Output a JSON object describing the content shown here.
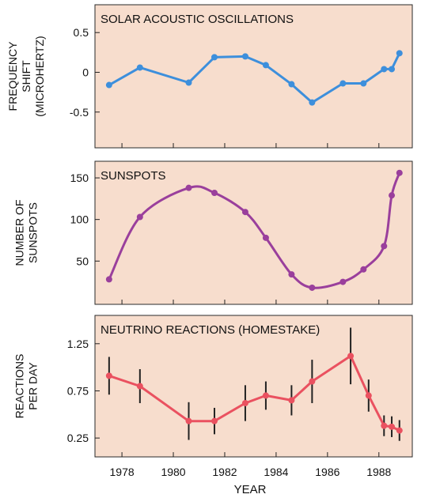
{
  "chart_data": [
    {
      "type": "line",
      "title": "SOLAR ACOUSTIC OSCILLATIONS",
      "ylabel_lines": [
        "FREQUENCY",
        "SHIFT",
        "(MICROHERTZ)"
      ],
      "ylim": [
        -0.95,
        0.85
      ],
      "yticks": [
        0.5,
        0,
        -0.5
      ],
      "ytick_labels": [
        "0.5",
        "0",
        "-0.5"
      ],
      "color": "#3d8fdc",
      "series": [
        {
          "x": [
            1977.5,
            1978.7,
            1980.6,
            1981.6,
            1982.8,
            1983.6,
            1984.6,
            1985.4,
            1986.6,
            1987.4,
            1988.2,
            1988.5,
            1988.8
          ],
          "y": [
            -0.16,
            0.06,
            -0.13,
            0.19,
            0.2,
            0.09,
            -0.15,
            -0.38,
            -0.14,
            -0.14,
            0.04,
            0.04,
            0.24
          ]
        }
      ]
    },
    {
      "type": "line",
      "title": "SUNSPOTS",
      "ylabel_lines": [
        "NUMBER OF",
        "SUNSPOTS"
      ],
      "ylim": [
        -2,
        170
      ],
      "yticks": [
        150,
        100,
        50
      ],
      "ytick_labels": [
        "150",
        "100",
        "50"
      ],
      "color": "#9a3f9c",
      "series": [
        {
          "x": [
            1977.5,
            1978.7,
            1980.6,
            1981.6,
            1982.8,
            1983.6,
            1984.6,
            1985.4,
            1986.6,
            1987.4,
            1988.2,
            1988.5,
            1988.8
          ],
          "y": [
            28,
            103,
            138,
            132,
            109,
            78,
            34,
            18,
            25,
            40,
            68,
            129,
            156
          ]
        }
      ]
    },
    {
      "type": "line",
      "title": "NEUTRINO REACTIONS (HOMESTAKE)",
      "ylabel_lines": [
        "REACTIONS",
        "PER DAY"
      ],
      "ylim": [
        0.05,
        1.55
      ],
      "yticks": [
        1.25,
        0.75,
        0.25
      ],
      "ytick_labels": [
        "1.25",
        "0.75",
        "0.25"
      ],
      "color": "#ea5160",
      "errorbar_color": "#222222",
      "series": [
        {
          "x": [
            1977.5,
            1978.7,
            1980.6,
            1981.6,
            1982.8,
            1983.6,
            1984.6,
            1985.4,
            1986.9,
            1987.6,
            1988.2,
            1988.5,
            1988.8
          ],
          "y": [
            0.91,
            0.8,
            0.43,
            0.43,
            0.62,
            0.7,
            0.65,
            0.85,
            1.12,
            0.7,
            0.38,
            0.37,
            0.33
          ],
          "err": [
            0.2,
            0.18,
            0.2,
            0.14,
            0.19,
            0.15,
            0.16,
            0.23,
            0.3,
            0.17,
            0.11,
            0.11,
            0.11
          ]
        }
      ]
    }
  ],
  "shared_x": {
    "xlabel": "YEAR",
    "xlim": [
      1976.95,
      1989.3
    ],
    "xticks": [
      1978,
      1980,
      1982,
      1984,
      1986,
      1988
    ],
    "xtick_labels": [
      "1978",
      "1980",
      "1982",
      "1984",
      "1986",
      "1988"
    ]
  }
}
